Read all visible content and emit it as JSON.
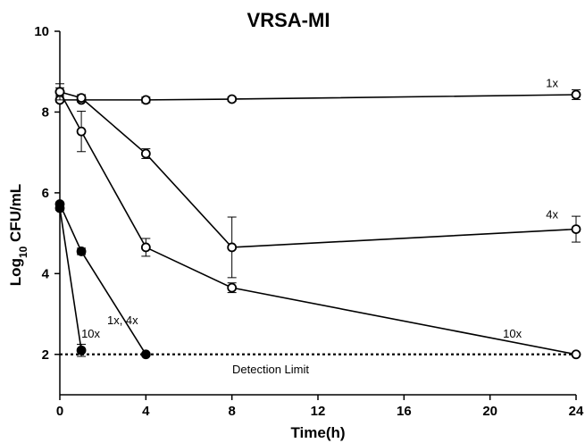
{
  "chart_data": {
    "type": "line",
    "title": "VRSA-MI",
    "xlabel": "Time(h)",
    "ylabel_main": "Log",
    "ylabel_sub": "10",
    "ylabel_rest": " CFU/mL",
    "xlim": [
      0,
      24
    ],
    "ylim": [
      1,
      10
    ],
    "x_ticks": [
      0,
      4,
      8,
      12,
      16,
      20,
      24
    ],
    "y_ticks": [
      2,
      4,
      6,
      8,
      10
    ],
    "grid": false,
    "legend": "none",
    "detection_limit": {
      "y": 2,
      "label": "Detection Limit"
    },
    "series": [
      {
        "fill": "open",
        "points": [
          {
            "x": 0,
            "y": 8.3,
            "err": 0.05
          },
          {
            "x": 1,
            "y": 8.3,
            "err": 0.05
          },
          {
            "x": 4,
            "y": 8.3,
            "err": 0.07
          },
          {
            "x": 8,
            "y": 8.32,
            "err": 0.05
          },
          {
            "x": 24,
            "y": 8.43,
            "err": 0.12
          }
        ]
      },
      {
        "fill": "open",
        "points": [
          {
            "x": 0,
            "y": 8.5,
            "err": 0.1
          },
          {
            "x": 1,
            "y": 8.35,
            "err": 0.08
          },
          {
            "x": 4,
            "y": 6.97,
            "err": 0.12
          },
          {
            "x": 8,
            "y": 4.65,
            "err": 0.75
          },
          {
            "x": 24,
            "y": 5.1,
            "err": 0.32
          }
        ]
      },
      {
        "fill": "open",
        "points": [
          {
            "x": 0,
            "y": 8.5,
            "err": 0.2
          },
          {
            "x": 1,
            "y": 7.52,
            "err": 0.5
          },
          {
            "x": 4,
            "y": 4.65,
            "err": 0.22
          },
          {
            "x": 8,
            "y": 3.65,
            "err": 0.12
          },
          {
            "x": 24,
            "y": 2.0,
            "err": 0
          }
        ]
      },
      {
        "fill": "filled",
        "points": [
          {
            "x": 0,
            "y": 5.72,
            "err": 0.05
          },
          {
            "x": 1,
            "y": 4.55,
            "err": 0.08
          },
          {
            "x": 4,
            "y": 2.0,
            "err": 0
          }
        ]
      },
      {
        "fill": "filled",
        "points": [
          {
            "x": 0,
            "y": 5.62,
            "err": 0.05
          },
          {
            "x": 1,
            "y": 2.1,
            "err": 0.15
          }
        ]
      }
    ],
    "annotations": [
      {
        "text": "1x",
        "x": 22.6,
        "y": 8.62
      },
      {
        "text": "4x",
        "x": 22.6,
        "y": 5.37
      },
      {
        "text": "10x",
        "x": 20.6,
        "y": 2.42
      },
      {
        "text": "1x, 4x",
        "x": 2.2,
        "y": 2.75
      },
      {
        "text": "10x",
        "x": 1.0,
        "y": 2.42
      }
    ]
  }
}
